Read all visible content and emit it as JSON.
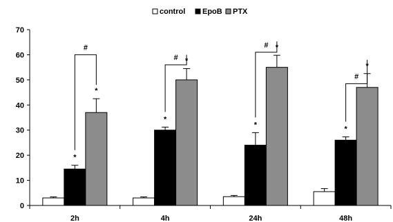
{
  "chart_data": {
    "type": "bar",
    "title": "",
    "xlabel": "",
    "ylabel": "",
    "categories": [
      "2h",
      "4h",
      "24h",
      "48h"
    ],
    "ylim": [
      0,
      70
    ],
    "yticks": [
      0,
      10,
      20,
      30,
      40,
      50,
      60,
      70
    ],
    "grid": false,
    "legend_position": "top-center",
    "series": [
      {
        "name": "control",
        "color": "#ffffff",
        "values": [
          3,
          3,
          3.5,
          5.5
        ],
        "errors": [
          0.4,
          0.4,
          0.5,
          1.2
        ]
      },
      {
        "name": "EpoB",
        "color": "#000000",
        "values": [
          14.5,
          30,
          24,
          26
        ],
        "errors": [
          1.5,
          1.2,
          5,
          1.3
        ]
      },
      {
        "name": "PTX",
        "color": "#8c8c8c",
        "values": [
          37,
          50,
          55,
          47
        ],
        "errors": [
          5.5,
          4.5,
          4.8,
          5.5
        ]
      }
    ],
    "annotations": {
      "star_label": "*",
      "hash_label": "#",
      "stars": [
        {
          "category": "2h",
          "series": "EpoB"
        },
        {
          "category": "2h",
          "series": "PTX"
        },
        {
          "category": "4h",
          "series": "EpoB"
        },
        {
          "category": "4h",
          "series": "PTX"
        },
        {
          "category": "24h",
          "series": "EpoB"
        },
        {
          "category": "24h",
          "series": "PTX"
        },
        {
          "category": "48h",
          "series": "EpoB"
        },
        {
          "category": "48h",
          "series": "PTX"
        }
      ],
      "brackets": [
        {
          "category": "2h",
          "from": "EpoB",
          "to": "PTX",
          "y": 60
        },
        {
          "category": "4h",
          "from": "EpoB",
          "to": "PTX",
          "y": 56
        },
        {
          "category": "24h",
          "from": "EpoB",
          "to": "PTX",
          "y": 61
        },
        {
          "category": "48h",
          "from": "EpoB",
          "to": "PTX",
          "y": 48.5
        }
      ]
    }
  }
}
